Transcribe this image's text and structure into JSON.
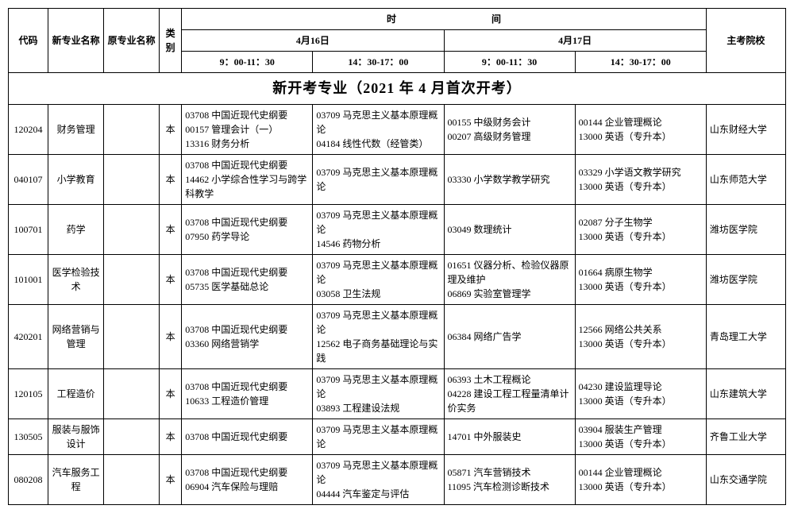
{
  "headers": {
    "code": "代码",
    "new_major": "新专业名称",
    "orig_major": "原专业名称",
    "category": "类别",
    "time_group": "时　　　　　　　　　　间",
    "date1": "4月16日",
    "date2": "4月17日",
    "slot_am": "9：00-11：30",
    "slot_pm": "14：30-17：00",
    "school": "主考院校"
  },
  "section_title": "新开考专业（2021 年 4 月首次开考）",
  "rows": [
    {
      "code": "120204",
      "name": "财务管理",
      "orig": "",
      "cat": "本",
      "d1am": "03708 中国近现代史纲要\n00157 管理会计（一）\n13316 财务分析",
      "d1pm": "03709 马克思主义基本原理概论\n04184 线性代数（经管类）",
      "d2am": "00155 中级财务会计\n00207 高级财务管理",
      "d2pm": "00144 企业管理概论\n13000 英语（专升本）",
      "school": "山东财经大学"
    },
    {
      "code": "040107",
      "name": "小学教育",
      "orig": "",
      "cat": "本",
      "d1am": "03708 中国近现代史纲要\n14462 小学综合性学习与跨学科教学",
      "d1pm": "03709 马克思主义基本原理概论",
      "d2am": "03330 小学数学教学研究",
      "d2pm": "03329 小学语文教学研究\n13000 英语（专升本）",
      "school": "山东师范大学"
    },
    {
      "code": "100701",
      "name": "药学",
      "orig": "",
      "cat": "本",
      "d1am": "03708 中国近现代史纲要\n07950 药学导论",
      "d1pm": "03709 马克思主义基本原理概论\n14546 药物分析",
      "d2am": "03049 数理统计",
      "d2pm": "02087 分子生物学\n13000 英语（专升本）",
      "school": "潍坊医学院"
    },
    {
      "code": "101001",
      "name": "医学检验技术",
      "orig": "",
      "cat": "本",
      "d1am": "03708 中国近现代史纲要\n05735 医学基础总论",
      "d1pm": "03709 马克思主义基本原理概论\n03058 卫生法规",
      "d2am": "01651 仪器分析、检验仪器原理及维护\n06869 实验室管理学",
      "d2pm": "01664 病原生物学\n13000 英语（专升本）",
      "school": "潍坊医学院"
    },
    {
      "code": "420201",
      "name": "网络营销与管理",
      "orig": "",
      "cat": "本",
      "d1am": "03708 中国近现代史纲要\n03360 网络营销学",
      "d1pm": "03709 马克思主义基本原理概论\n12562 电子商务基础理论与实践",
      "d2am": "06384 网络广告学",
      "d2pm": "12566 网络公共关系\n13000 英语（专升本）",
      "school": "青岛理工大学"
    },
    {
      "code": "120105",
      "name": "工程造价",
      "orig": "",
      "cat": "本",
      "d1am": "03708 中国近现代史纲要\n10633 工程造价管理",
      "d1pm": "03709 马克思主义基本原理概论\n03893 工程建设法规",
      "d2am": "06393 土木工程概论\n04228 建设工程工程量清单计价实务",
      "d2pm": "04230 建设监理导论\n13000 英语（专升本）",
      "school": "山东建筑大学"
    },
    {
      "code": "130505",
      "name": "服装与服饰设计",
      "orig": "",
      "cat": "本",
      "d1am": "03708 中国近现代史纲要",
      "d1pm": "03709 马克思主义基本原理概论",
      "d2am": "14701 中外服装史",
      "d2pm": "03904 服装生产管理\n13000 英语（专升本）",
      "school": "齐鲁工业大学"
    },
    {
      "code": "080208",
      "name": "汽车服务工程",
      "orig": "",
      "cat": "本",
      "d1am": "03708 中国近现代史纲要\n06904 汽车保险与理赔",
      "d1pm": "03709 马克思主义基本原理概论\n04444 汽车鉴定与评估",
      "d2am": "05871 汽车营销技术\n11095 汽车检测诊断技术",
      "d2pm": "00144 企业管理概论\n13000 英语（专升本）",
      "school": "山东交通学院"
    }
  ]
}
